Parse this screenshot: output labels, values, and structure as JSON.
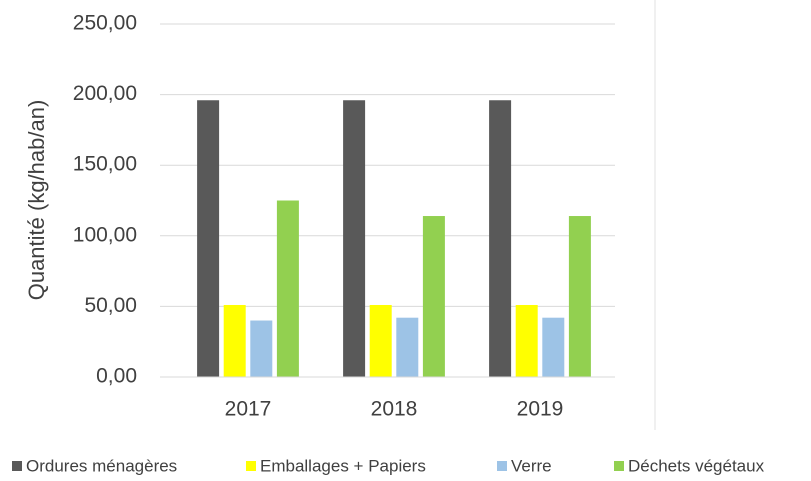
{
  "chart_data": {
    "type": "bar",
    "ylabel": "Quantité (kg/hab/an)",
    "categories": [
      "2017",
      "2018",
      "2019"
    ],
    "series": [
      {
        "name": "Ordures ménagères",
        "color": "#595959",
        "values": [
          196,
          196,
          196
        ]
      },
      {
        "name": "Emballages + Papiers",
        "color": "#ffff00",
        "values": [
          51,
          51,
          51
        ]
      },
      {
        "name": "Verre",
        "color": "#9dc3e6",
        "values": [
          40,
          42,
          42
        ]
      },
      {
        "name": "Déchets végétaux",
        "color": "#92d050",
        "values": [
          125,
          114,
          114
        ]
      }
    ],
    "ylim": [
      0,
      250
    ],
    "yticks": [
      {
        "value": 0,
        "label": "0,00"
      },
      {
        "value": 50,
        "label": "50,00"
      },
      {
        "value": 100,
        "label": "100,00"
      },
      {
        "value": 150,
        "label": "150,00"
      },
      {
        "value": 200,
        "label": "200,00"
      },
      {
        "value": 250,
        "label": "250,00"
      }
    ],
    "grid": true,
    "legend": "bottom"
  }
}
